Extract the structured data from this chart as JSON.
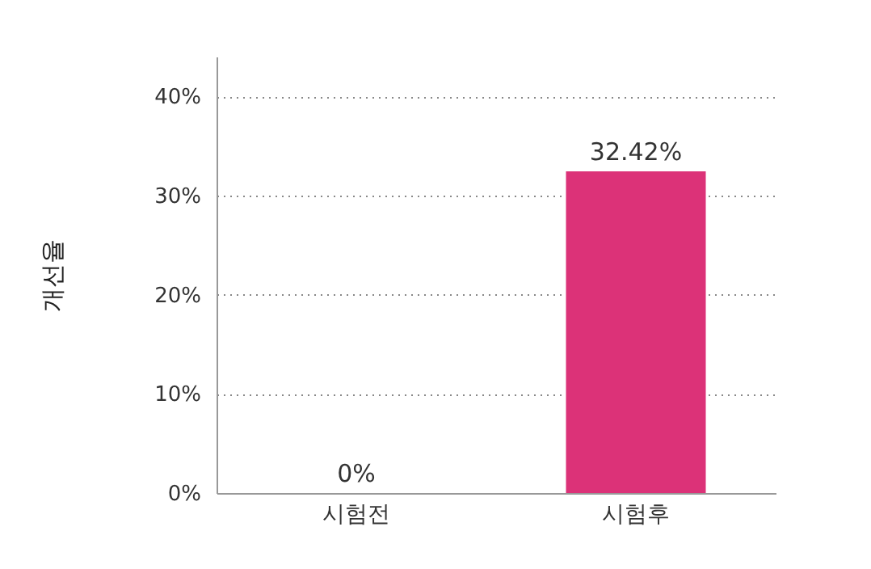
{
  "chart_data": {
    "type": "bar",
    "ylabel": "개선율",
    "categories": [
      "시험전",
      "시험후"
    ],
    "values": [
      0,
      32.42
    ],
    "colors": [
      "#dc3278",
      "#dc3278"
    ],
    "value_labels": [
      "0%",
      "32.42%"
    ],
    "ylim": [
      0,
      44
    ],
    "yticks": [
      {
        "value": 0,
        "label": "0%"
      },
      {
        "value": 10,
        "label": "10%"
      },
      {
        "value": 20,
        "label": "20%"
      },
      {
        "value": 30,
        "label": "30%"
      },
      {
        "value": 40,
        "label": "40%"
      }
    ],
    "grid": "y"
  }
}
